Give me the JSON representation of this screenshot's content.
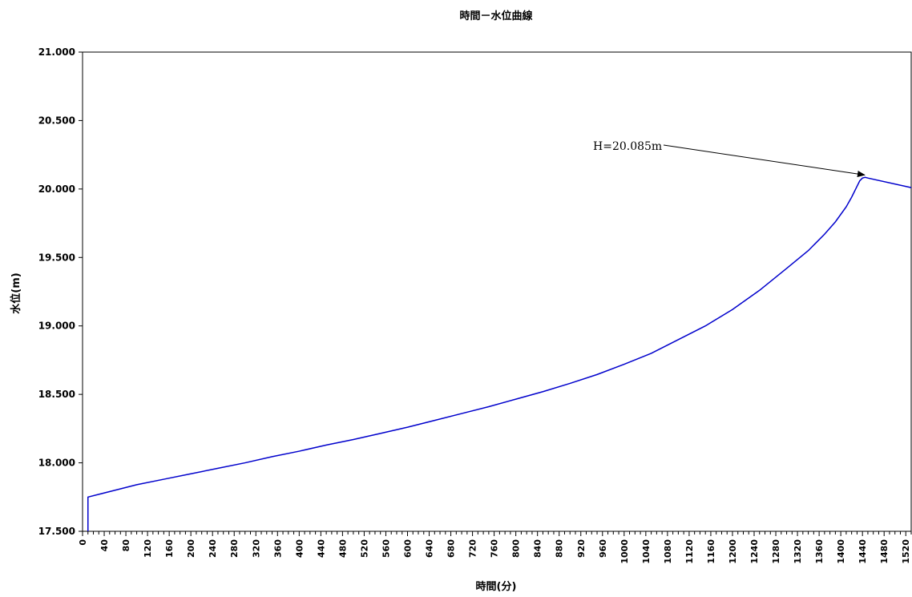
{
  "chart_data": {
    "type": "line",
    "title": "時間－水位曲線",
    "xlabel": "時間(分)",
    "ylabel": "水位(m)",
    "xlim": [
      0,
      1530
    ],
    "ylim": [
      17.5,
      21.0
    ],
    "xticks": [
      0,
      40,
      80,
      120,
      160,
      200,
      240,
      280,
      320,
      360,
      400,
      440,
      480,
      520,
      560,
      600,
      640,
      680,
      720,
      760,
      800,
      840,
      880,
      920,
      960,
      1000,
      1040,
      1080,
      1120,
      1160,
      1200,
      1240,
      1280,
      1320,
      1360,
      1400,
      1440,
      1480,
      1520
    ],
    "yticks": [
      "17.500",
      "18.000",
      "18.500",
      "19.000",
      "19.500",
      "20.000",
      "20.500",
      "21.000"
    ],
    "grid": false,
    "legend": "none",
    "series_color": "#0000cc",
    "series": [
      {
        "x": [
          10,
          10,
          30,
          60,
          100,
          150,
          200,
          250,
          300,
          350,
          400,
          450,
          500,
          550,
          600,
          650,
          700,
          750,
          800,
          850,
          900,
          950,
          1000,
          1050,
          1100,
          1150,
          1200,
          1250,
          1300,
          1340,
          1370,
          1390,
          1410,
          1420,
          1430,
          1435,
          1440,
          1445,
          1450,
          1530
        ],
        "y": [
          17.5,
          17.75,
          17.77,
          17.8,
          17.84,
          17.88,
          17.92,
          17.96,
          18.0,
          18.045,
          18.085,
          18.13,
          18.17,
          18.215,
          18.26,
          18.31,
          18.36,
          18.41,
          18.465,
          18.52,
          18.58,
          18.645,
          18.72,
          18.8,
          18.9,
          19.0,
          19.12,
          19.26,
          19.42,
          19.55,
          19.67,
          19.76,
          19.87,
          19.94,
          20.02,
          20.06,
          20.08,
          20.085,
          20.08,
          20.01
        ]
      }
    ],
    "annotation": {
      "text": "H=20.085m",
      "point": [
        1450,
        20.085
      ]
    }
  }
}
